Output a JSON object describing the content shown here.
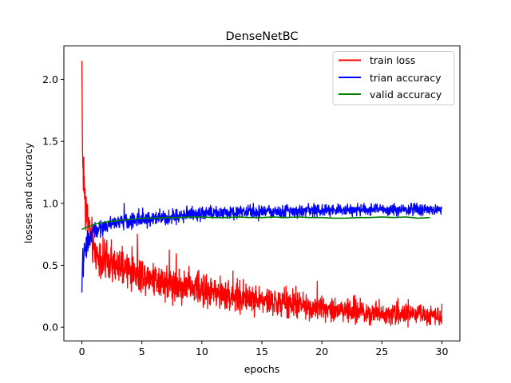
{
  "chart_data": {
    "type": "line",
    "title": "DenseNetBC",
    "xlabel": "epochs",
    "ylabel": "losses and accuracy",
    "xlim": [
      -1.5,
      31.5
    ],
    "ylim": [
      -0.11,
      2.27
    ],
    "x_ticks": [
      0,
      5,
      10,
      15,
      20,
      25,
      30
    ],
    "y_ticks": [
      0.0,
      0.5,
      1.0,
      1.5,
      2.0
    ],
    "x_tick_labels": [
      "0",
      "5",
      "10",
      "15",
      "20",
      "25",
      "30"
    ],
    "y_tick_labels": [
      "0.0",
      "0.5",
      "1.0",
      "1.5",
      "2.0"
    ],
    "grid": false,
    "legend_position": "top-right",
    "series": [
      {
        "name": "train loss",
        "color": "#ff0000",
        "noisy": true,
        "x": [
          0,
          0.05,
          0.1,
          0.2,
          0.3,
          0.5,
          0.8,
          1,
          1.5,
          2,
          3,
          4,
          5,
          6,
          7,
          8,
          10,
          12,
          14,
          16,
          18,
          20,
          22,
          24,
          26,
          28,
          30
        ],
        "y": [
          2.15,
          1.45,
          1.3,
          1.15,
          1.0,
          0.85,
          0.72,
          0.62,
          0.56,
          0.52,
          0.48,
          0.46,
          0.43,
          0.4,
          0.37,
          0.34,
          0.3,
          0.26,
          0.23,
          0.2,
          0.18,
          0.16,
          0.14,
          0.12,
          0.11,
          0.1,
          0.1
        ],
        "amplitude": [
          0,
          0.25,
          0.25,
          0.22,
          0.2,
          0.18,
          0.16,
          0.15,
          0.15,
          0.14,
          0.14,
          0.14,
          0.13,
          0.13,
          0.13,
          0.12,
          0.12,
          0.11,
          0.11,
          0.1,
          0.1,
          0.09,
          0.09,
          0.08,
          0.08,
          0.07,
          0.07
        ]
      },
      {
        "name": "trian accuracy",
        "color": "#0000ff",
        "noisy": true,
        "x": [
          0,
          0.05,
          0.2,
          0.5,
          1,
          2,
          3,
          5,
          8,
          10,
          15,
          20,
          25,
          30
        ],
        "y": [
          0.28,
          0.5,
          0.6,
          0.7,
          0.77,
          0.82,
          0.85,
          0.87,
          0.9,
          0.92,
          0.93,
          0.94,
          0.95,
          0.95
        ],
        "amplitude": [
          0,
          0.1,
          0.1,
          0.08,
          0.07,
          0.06,
          0.06,
          0.06,
          0.05,
          0.05,
          0.05,
          0.045,
          0.04,
          0.04
        ],
        "cap": 1.0
      },
      {
        "name": "valid accuracy",
        "color": "#008000",
        "noisy": false,
        "x": [
          0,
          1,
          2,
          3,
          4,
          5,
          6,
          7,
          8,
          9,
          10,
          11,
          12,
          13,
          14,
          15,
          16,
          17,
          18,
          19,
          20,
          21,
          22,
          23,
          24,
          25,
          26,
          27,
          28,
          29
        ],
        "y": [
          0.79,
          0.83,
          0.85,
          0.86,
          0.87,
          0.88,
          0.88,
          0.885,
          0.885,
          0.89,
          0.89,
          0.885,
          0.885,
          0.89,
          0.885,
          0.885,
          0.89,
          0.885,
          0.89,
          0.885,
          0.885,
          0.88,
          0.88,
          0.885,
          0.885,
          0.89,
          0.885,
          0.89,
          0.88,
          0.885
        ]
      }
    ]
  }
}
